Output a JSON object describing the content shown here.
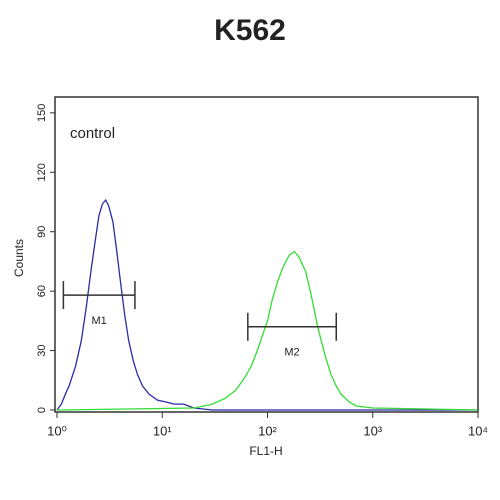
{
  "chart_data": {
    "type": "histogram-line",
    "title": "K562",
    "annotation": "control",
    "xlabel": "FL1-H",
    "ylabel": "Counts",
    "xscale": "log",
    "xlim": [
      1,
      10000
    ],
    "xticks": [
      {
        "value": 1,
        "label": "10⁰"
      },
      {
        "value": 10,
        "label": "10¹"
      },
      {
        "value": 100,
        "label": "10²"
      },
      {
        "value": 1000,
        "label": "10³"
      },
      {
        "value": 10000,
        "label": "10⁴"
      }
    ],
    "ylim": [
      0,
      158
    ],
    "yticks": [
      0,
      30,
      60,
      90,
      120,
      150
    ],
    "series": [
      {
        "color": "#2b2ba8",
        "x": [
          1.0,
          1.1,
          1.2,
          1.3,
          1.5,
          1.7,
          1.9,
          2.1,
          2.3,
          2.5,
          2.7,
          2.9,
          3.1,
          3.4,
          3.7,
          4.0,
          4.4,
          4.8,
          5.3,
          5.8,
          6.5,
          7.5,
          9,
          11,
          13,
          16,
          20,
          30,
          100,
          1000,
          10000
        ],
        "values": [
          0,
          3,
          8,
          12,
          22,
          35,
          52,
          70,
          85,
          98,
          104,
          106,
          103,
          95,
          80,
          65,
          48,
          35,
          25,
          18,
          12,
          8,
          5,
          4,
          3,
          3,
          1,
          0,
          0,
          0,
          0
        ]
      },
      {
        "color": "#33dd33",
        "x": [
          1,
          20,
          30,
          40,
          50,
          60,
          70,
          80,
          90,
          100,
          110,
          125,
          140,
          160,
          180,
          200,
          230,
          260,
          300,
          350,
          400,
          450,
          500,
          600,
          700,
          1000,
          10000
        ],
        "values": [
          0,
          1,
          3,
          6,
          10,
          16,
          22,
          30,
          38,
          45,
          55,
          65,
          72,
          78,
          80,
          77,
          70,
          58,
          42,
          28,
          18,
          12,
          8,
          4,
          2,
          1,
          0
        ]
      }
    ],
    "gates": [
      {
        "label": "M1",
        "x": [
          1.15,
          5.5
        ],
        "y": 58
      },
      {
        "label": "M2",
        "x": [
          65,
          450
        ],
        "y": 42
      }
    ]
  }
}
